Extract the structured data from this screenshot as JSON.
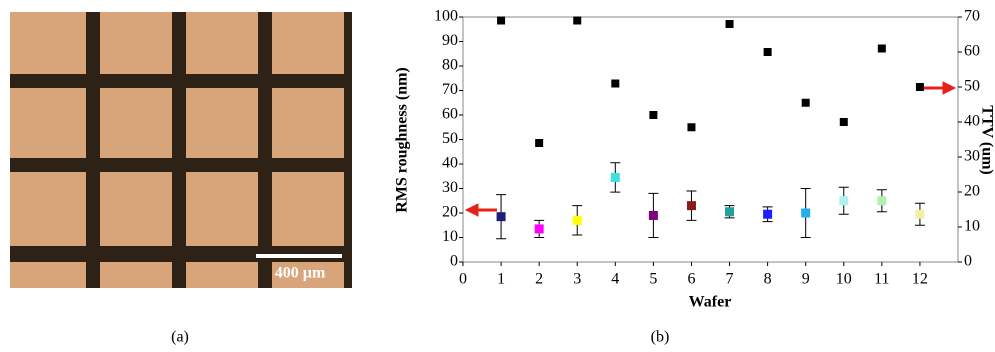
{
  "panel_a": {
    "scale_bar": "400 µm",
    "caption": "(a)"
  },
  "panel_b": {
    "caption": "(b)"
  },
  "chart_data": {
    "type": "scatter",
    "x_label": "Wafer",
    "y_label": "RMS roughness (nm)",
    "y2_label": "TTV (um)",
    "x": [
      1,
      2,
      3,
      4,
      5,
      6,
      7,
      8,
      9,
      10,
      11,
      12
    ],
    "series": [
      {
        "values": [
          18.5,
          13.5,
          17,
          34.5,
          19,
          23,
          20.5,
          19.5,
          20,
          25,
          25,
          19.5
        ],
        "errors": [
          9,
          3.5,
          6,
          6,
          9,
          6,
          2.5,
          3,
          10,
          5.5,
          4.5,
          4.5
        ],
        "colors": [
          "#1f1f7a",
          "#ff00ff",
          "#ffff00",
          "#40e0e0",
          "#800080",
          "#8b1a1a",
          "#20a0a0",
          "#2020ff",
          "#20b0f0",
          "#b0f0f0",
          "#b0f0b0",
          "#f0f0a0"
        ],
        "axis": "y"
      },
      {
        "values": [
          69,
          34,
          69,
          51,
          42,
          38.5,
          68,
          60,
          45.5,
          40,
          61,
          50
        ],
        "color": "#000000",
        "axis": "y2"
      }
    ],
    "xlim": [
      0,
      13
    ],
    "xticks": [
      0,
      1,
      2,
      3,
      4,
      5,
      6,
      7,
      8,
      9,
      10,
      11,
      12
    ],
    "ylim": [
      0,
      100
    ],
    "yticks": [
      0,
      10,
      20,
      30,
      40,
      50,
      60,
      70,
      80,
      90,
      100
    ],
    "y2lim": [
      0,
      70
    ],
    "y2ticks": [
      0,
      10,
      20,
      30,
      40,
      50,
      60,
      70
    ]
  }
}
